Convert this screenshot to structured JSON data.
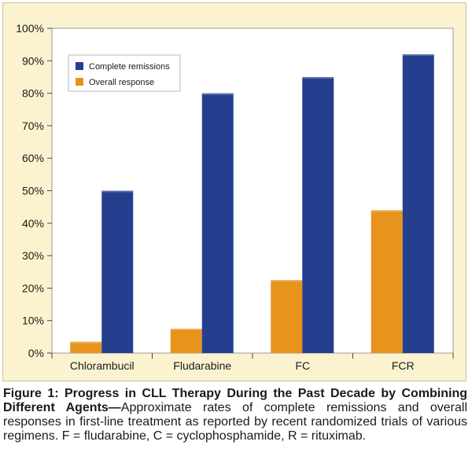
{
  "chart_data": {
    "type": "bar",
    "categories": [
      "Chlorambucil",
      "Fludarabine",
      "FC",
      "FCR"
    ],
    "series": [
      {
        "name": "Complete remissions",
        "values": [
          50,
          80,
          85,
          92
        ],
        "color": "#253f8f"
      },
      {
        "name": "Overall response",
        "values": [
          3.5,
          7.5,
          22.5,
          44
        ],
        "color": "#e8931c"
      }
    ],
    "draw_order": [
      "Overall response",
      "Complete remissions"
    ],
    "ylim": [
      0,
      100
    ],
    "yticks": [
      0,
      10,
      20,
      30,
      40,
      50,
      60,
      70,
      80,
      90,
      100
    ],
    "ytick_labels": [
      "0%",
      "10%",
      "20%",
      "30%",
      "40%",
      "50%",
      "60%",
      "70%",
      "80%",
      "90%",
      "100%"
    ],
    "legend": [
      "Complete remissions",
      "Overall response"
    ],
    "legend_position": "top-left",
    "grid": false
  },
  "caption": {
    "title": "Figure 1: Progress in CLL Therapy During the Past Decade by Combining Different Agents—",
    "body": "Approximate rates of complete remissions and overall responses in first-line treatment as reported by recent randomized trials of various regimens. F = fludarabine, C = cyclophosphamide, R = rituximab."
  },
  "colors": {
    "plot_background": "#ffffff",
    "frame_background": "#fbf3cf"
  }
}
